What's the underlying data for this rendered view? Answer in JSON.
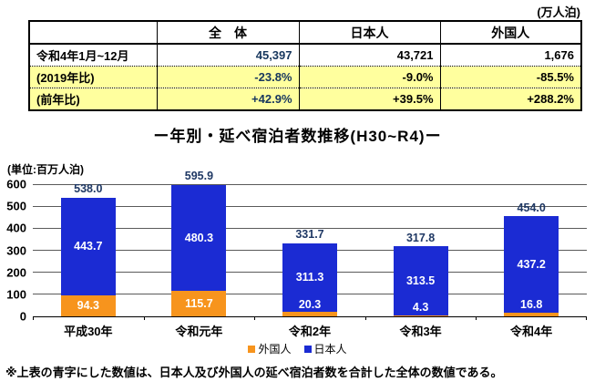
{
  "unit_note_top": "(万人泊)",
  "table": {
    "headers": [
      "",
      "全　体",
      "日本人",
      "外国人"
    ],
    "rows": [
      {
        "label": "令和4年1月~12月",
        "values": [
          "45,397",
          "43,721",
          "1,676"
        ],
        "highlight": false
      },
      {
        "label": "(2019年比)",
        "values": [
          "-23.8%",
          "-9.0%",
          "-85.5%"
        ],
        "highlight": true
      },
      {
        "label": "(前年比)",
        "values": [
          "+42.9%",
          "+39.5%",
          "+288.2%"
        ],
        "highlight": true
      }
    ]
  },
  "chart_data": {
    "type": "bar",
    "stacked": true,
    "title": "ー年別・延べ宿泊者数推移(H30~R4)ー",
    "unit_label": "(単位:百万人泊)",
    "categories": [
      "平成30年",
      "令和元年",
      "令和2年",
      "令和3年",
      "令和4年"
    ],
    "series": [
      {
        "name": "外国人",
        "color": "#F7941D",
        "values": [
          94.3,
          115.7,
          20.3,
          4.3,
          16.8
        ]
      },
      {
        "name": "日本人",
        "color": "#1B2BD3",
        "values": [
          443.7,
          480.3,
          311.3,
          313.5,
          437.2
        ]
      }
    ],
    "totals": [
      538.0,
      595.9,
      331.7,
      317.8,
      454.0
    ],
    "total_label_color": "#1F3864",
    "ylim": [
      0,
      600
    ],
    "yticks": [
      0,
      100,
      200,
      300,
      400,
      500,
      600
    ],
    "grid": true,
    "legend_position": "bottom",
    "xlabel": "",
    "ylabel": ""
  },
  "footnote": "※上表の青字にした数値は、日本人及び外国人の延べ宿泊者数を合計した全体の数値である。"
}
